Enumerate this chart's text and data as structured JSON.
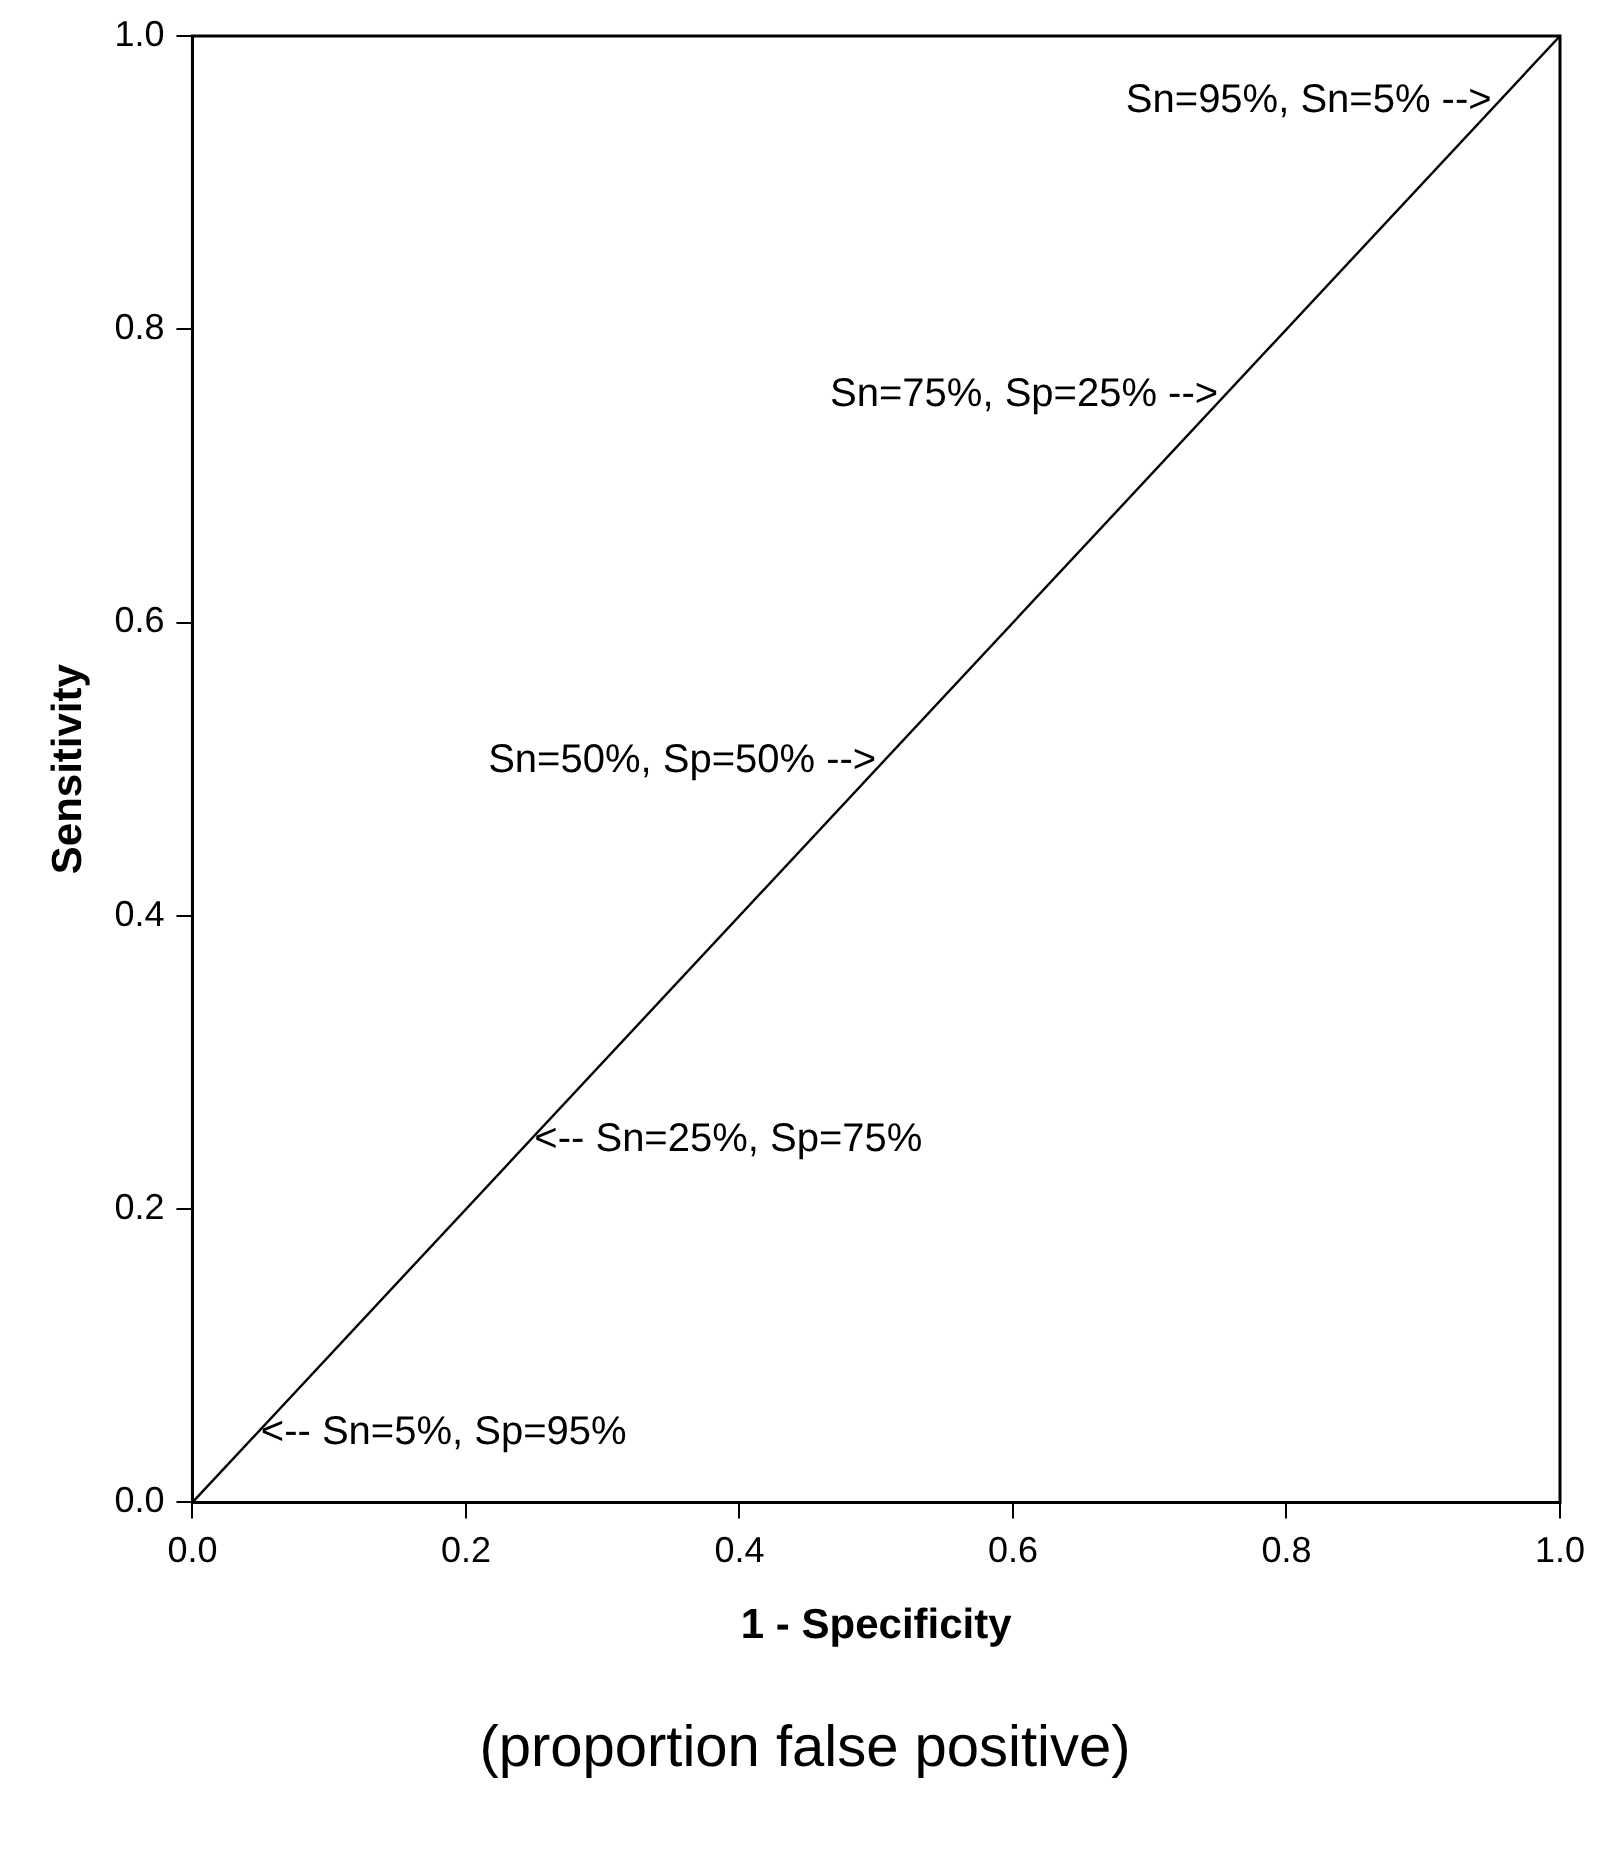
{
  "chart_data": {
    "type": "line",
    "xlabel": "1 - Specificity",
    "ylabel": "Sensitivity",
    "x": [
      0,
      1
    ],
    "series": [
      {
        "color": "#000000",
        "values": [
          0,
          1
        ]
      }
    ],
    "xlim": [
      0,
      1
    ],
    "ylim": [
      0,
      1
    ],
    "xticks": [
      {
        "value": 0,
        "label": "0.0"
      },
      {
        "value": 0.2,
        "label": "0.2"
      },
      {
        "value": 0.4,
        "label": "0.4"
      },
      {
        "value": 0.6,
        "label": "0.6"
      },
      {
        "value": 0.8,
        "label": "0.8"
      },
      {
        "value": 1,
        "label": "1.0"
      }
    ],
    "yticks": [
      {
        "value": 0,
        "label": "0.0"
      },
      {
        "value": 0.2,
        "label": "0.2"
      },
      {
        "value": 0.4,
        "label": "0.4"
      },
      {
        "value": 0.6,
        "label": "0.6"
      },
      {
        "value": 0.8,
        "label": "0.8"
      },
      {
        "value": 1,
        "label": "1.0"
      }
    ],
    "grid": false,
    "legend": false,
    "marker": "none",
    "line_style": "solid",
    "annotations": [
      {
        "text": "Sn=95%, Sn=5% -->",
        "x": 0.95,
        "y": 0.95
      },
      {
        "text": "Sn=75%, Sp=25% -->",
        "x": 0.75,
        "y": 0.75
      },
      {
        "text": "Sn=50%, Sp=50% -->",
        "x": 0.5,
        "y": 0.5
      },
      {
        "text": "<-- Sn=25%, Sp=75%",
        "x": 0.25,
        "y": 0.25
      },
      {
        "text": "<-- Sn=5%, Sp=95%",
        "x": 0.05,
        "y": 0.05
      },
      "(proportion false positive)"
    ]
  }
}
